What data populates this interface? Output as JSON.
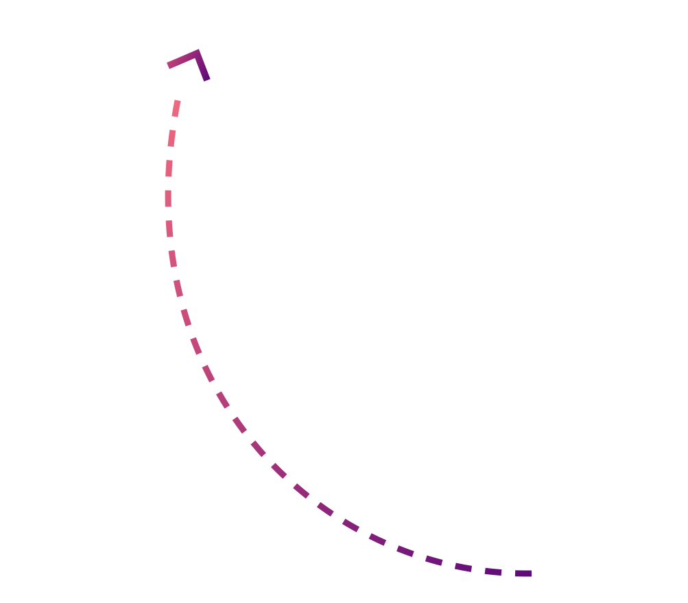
{
  "arrow": {
    "style": "dashed-curved-arrow",
    "direction": "pointing-up-right",
    "head_icon": "chevron-arrowhead-icon",
    "colors": {
      "start": "#f0697f",
      "mid": "#b8407a",
      "end": "#5e0a7a",
      "head_start": "#c0407a",
      "head_end": "#5e0a7a"
    }
  }
}
